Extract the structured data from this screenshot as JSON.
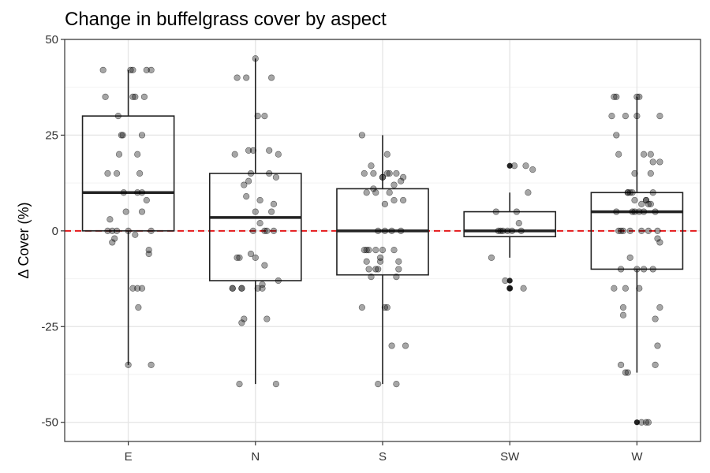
{
  "chart_data": {
    "type": "box",
    "title": "Change in buffelgrass cover by aspect",
    "xlabel": "",
    "ylabel": "Δ Cover (%)",
    "ylim": [
      -55,
      50
    ],
    "yticks": [
      -50,
      -25,
      0,
      25,
      50
    ],
    "grid": true,
    "reference_line": {
      "y": 0,
      "color": "#e41a1c",
      "style": "dashed"
    },
    "categories": [
      "E",
      "N",
      "S",
      "SW",
      "W"
    ],
    "boxes": [
      {
        "category": "E",
        "q1": 0,
        "median": 10,
        "q3": 30,
        "whisker_low": -35,
        "whisker_high": 42,
        "outliers": []
      },
      {
        "category": "N",
        "q1": -13,
        "median": 3.5,
        "q3": 15,
        "whisker_low": -40,
        "whisker_high": 45,
        "outliers": []
      },
      {
        "category": "S",
        "q1": -11.5,
        "median": 0,
        "q3": 11,
        "whisker_low": -40,
        "whisker_high": 25,
        "outliers": []
      },
      {
        "category": "SW",
        "q1": -1.5,
        "median": 0,
        "q3": 5,
        "whisker_low": -7,
        "whisker_high": 10,
        "outliers": [
          17,
          -13,
          -15
        ]
      },
      {
        "category": "W",
        "q1": -10,
        "median": 5,
        "q3": 10,
        "whisker_low": -37,
        "whisker_high": 35,
        "outliers": [
          -50
        ]
      }
    ],
    "points": [
      {
        "category": "E",
        "jitter": [
          -0.55,
          -0.5,
          -0.45,
          -0.4,
          -0.35,
          -0.3,
          -0.25,
          -0.22,
          -0.2,
          -0.15,
          -0.12,
          -0.1,
          -0.05,
          0,
          0.05,
          0.1,
          0.1,
          0.15,
          0.2,
          0.2,
          0.25,
          0.3,
          0.3,
          0.35,
          0.4,
          0.45,
          0.45,
          0.5,
          0.5,
          -0.45,
          -0.35,
          -0.25,
          0.0,
          0.1,
          0.2,
          0.3,
          0.4,
          0.5,
          0.3,
          0.22,
          0.15
        ],
        "y": [
          42,
          35,
          15,
          3,
          -3,
          -2,
          15,
          30,
          20,
          25,
          25,
          10,
          5,
          -35,
          42,
          42,
          35,
          35,
          20,
          10,
          15,
          25,
          5,
          35,
          42,
          -6,
          -5,
          42,
          -35,
          0,
          0,
          0,
          0,
          -15,
          -15,
          10,
          8,
          0,
          -15,
          -20,
          -1
        ]
      },
      {
        "category": "N",
        "jitter": [
          -0.5,
          -0.45,
          -0.4,
          -0.35,
          -0.3,
          -0.25,
          -0.2,
          -0.15,
          -0.1,
          -0.05,
          0,
          0.05,
          0.1,
          0.15,
          0.2,
          0.25,
          0.3,
          0.35,
          0.4,
          0.45,
          0.5,
          -0.5,
          -0.4,
          -0.3,
          -0.2,
          -0.1,
          0,
          0.1,
          0.2,
          0.3,
          0.4,
          0.5,
          -0.35,
          -0.25,
          -0.15,
          -0.05,
          0.05,
          0.15,
          0.25,
          0.35,
          0.45,
          -0.3,
          0.0,
          0.2
        ],
        "y": [
          -15,
          20,
          40,
          -40,
          -24,
          -23,
          40,
          21,
          -6,
          0,
          45,
          30,
          8,
          -14,
          30,
          0,
          21,
          40,
          7,
          -40,
          20,
          -15,
          -7,
          -15,
          9,
          15,
          5,
          2,
          0,
          15,
          0,
          -13,
          -7,
          12,
          13,
          21,
          -15,
          -15,
          -23,
          5,
          14,
          -15,
          -7,
          -9
        ]
      },
      {
        "category": "S",
        "jitter": [
          -0.45,
          -0.4,
          -0.35,
          -0.3,
          -0.25,
          -0.2,
          -0.15,
          -0.1,
          -0.05,
          0,
          0.05,
          0.1,
          0.15,
          0.2,
          0.25,
          0.3,
          0.35,
          0.4,
          0.45,
          0.5,
          -0.45,
          -0.4,
          -0.35,
          -0.3,
          -0.25,
          -0.2,
          -0.15,
          -0.1,
          -0.05,
          0,
          0.05,
          0.1,
          0.15,
          0.2,
          0.25,
          0.3,
          0.35,
          0.4,
          -0.35,
          -0.15,
          0.05,
          0.25,
          -0.1,
          0.0,
          0.1,
          0.3,
          0.45
        ],
        "y": [
          25,
          15,
          10,
          -5,
          17,
          15,
          -10,
          -40,
          -7,
          14,
          0,
          -20,
          15,
          -30,
          12,
          -40,
          -10,
          13,
          14,
          -30,
          -20,
          -5,
          -8,
          -10,
          -12,
          11,
          10,
          0,
          -8,
          14,
          -20,
          20,
          10,
          0,
          8,
          15,
          -8,
          0,
          -5,
          -5,
          7,
          -5,
          -10,
          -5,
          15,
          -12,
          8
        ]
      },
      {
        "category": "SW",
        "jitter": [
          -0.4,
          -0.3,
          -0.2,
          -0.1,
          0,
          0.1,
          0.15,
          0.2,
          0.3,
          0.4,
          0.5,
          -0.25,
          -0.15,
          0.05,
          0.25,
          0.35,
          -0.05
        ],
        "y": [
          -7,
          5,
          0,
          -13,
          -15,
          17,
          5,
          2,
          -15,
          10,
          16,
          0,
          0,
          0,
          0,
          17,
          0
        ]
      },
      {
        "category": "W",
        "jitter": [
          -0.55,
          -0.5,
          -0.45,
          -0.4,
          -0.35,
          -0.3,
          -0.25,
          -0.2,
          -0.15,
          -0.1,
          -0.05,
          0,
          0.05,
          0.1,
          0.15,
          0.2,
          0.25,
          0.3,
          0.35,
          0.4,
          0.45,
          0.5,
          0.5,
          -0.5,
          -0.45,
          -0.4,
          -0.35,
          -0.3,
          -0.25,
          -0.2,
          -0.15,
          -0.1,
          -0.05,
          0,
          0.05,
          0.1,
          0.15,
          0.2,
          0.25,
          0.3,
          0.35,
          0.4,
          0.45,
          0.5,
          -0.45,
          -0.35,
          -0.25,
          -0.15,
          -0.05,
          0.05,
          0.15,
          0.25,
          0.35,
          0.45,
          0.2,
          0.3,
          0.4,
          0.5,
          -0.3,
          -0.2,
          0.0,
          0.1
        ],
        "y": [
          30,
          35,
          35,
          20,
          -35,
          -22,
          30,
          -37,
          10,
          10,
          5,
          30,
          -15,
          -50,
          20,
          -50,
          -50,
          20,
          18,
          -35,
          -30,
          -20,
          18,
          -15,
          5,
          0,
          -10,
          -20,
          -37,
          10,
          0,
          5,
          15,
          -10,
          5,
          7,
          5,
          8,
          0,
          15,
          -10,
          -23,
          -2,
          30,
          25,
          0,
          -15,
          -7,
          8,
          35,
          -10,
          7,
          10,
          0,
          8,
          7,
          5,
          -3,
          0,
          10,
          35,
          0
        ]
      }
    ]
  }
}
